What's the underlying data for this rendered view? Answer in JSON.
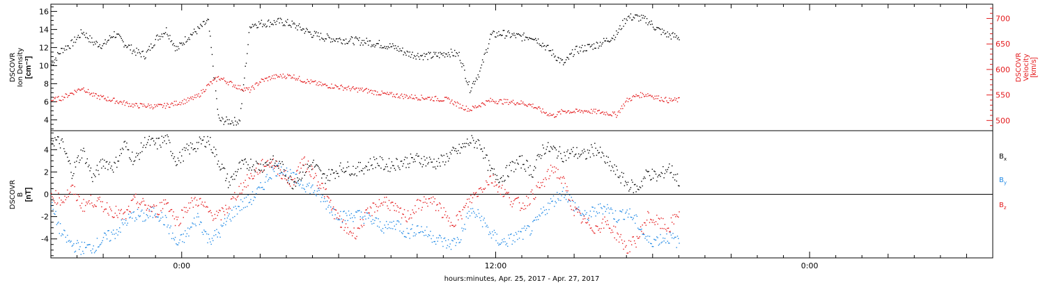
{
  "chart_data": [
    {
      "type": "scatter",
      "panel": "plasma",
      "ylabel_lines": [
        "DSCOVR",
        "Ion Density"
      ],
      "ylabel_unit": "[cm⁻³]",
      "ylabel_right_lines": [
        "DSCOVR",
        "Velocity"
      ],
      "ylabel_right_unit": "[km/s]",
      "ylim": [
        2.8,
        16.8
      ],
      "yticks": [
        4,
        6,
        8,
        10,
        12,
        14,
        16
      ],
      "ylim_right": [
        480,
        728
      ],
      "yticks_right": [
        500,
        550,
        600,
        650,
        700
      ],
      "xlim_hours": [
        -5.0,
        31.0
      ],
      "grid": false,
      "colors": {
        "density": "#000000",
        "velocity": "#e41a1c"
      },
      "series": [
        {
          "axis": "left",
          "x": [
            -5,
            -4.6,
            -4.2,
            -3.8,
            -3.4,
            -3,
            -2.6,
            -2.2,
            -1.8,
            -1.4,
            -1,
            -0.6,
            -0.2,
            0.2,
            0.6,
            1,
            1.4,
            1.8,
            2.2,
            2.6,
            3,
            3.4,
            3.8,
            4.2,
            4.6,
            5,
            5.4,
            5.8,
            6.2,
            6.6,
            7,
            7.4,
            7.8,
            8.2,
            8.6,
            9,
            9.4,
            9.8,
            10.2,
            10.6,
            11,
            11.4,
            11.8,
            12.2,
            12.6,
            13,
            13.4,
            13.8,
            14.2,
            14.6,
            15,
            15.4,
            15.8,
            16.2,
            16.6,
            17,
            17.4,
            17.8,
            18.2,
            18.6,
            19
          ],
          "values": [
            10.2,
            11.8,
            12.5,
            13.8,
            12.6,
            12.3,
            13.6,
            12.5,
            11.6,
            11.2,
            13.0,
            14.0,
            11.8,
            13.2,
            14.0,
            15.0,
            4.0,
            3.9,
            3.9,
            14.6,
            14.7,
            14.8,
            14.9,
            14.6,
            14.1,
            13.5,
            13.2,
            13.0,
            12.9,
            12.8,
            12.7,
            12.5,
            12.3,
            12.0,
            11.4,
            11.2,
            11.1,
            11.2,
            11.5,
            11.2,
            7.5,
            9.5,
            13.4,
            13.6,
            13.4,
            13.2,
            13.3,
            12.4,
            11.3,
            10.2,
            11.7,
            12.0,
            12.3,
            12.8,
            13.5,
            15.4,
            15.4,
            15.0,
            14.0,
            13.4,
            13.2
          ]
        },
        {
          "axis": "right",
          "x": [
            -5,
            -4.6,
            -4.2,
            -3.8,
            -3.4,
            -3,
            -2.6,
            -2.2,
            -1.8,
            -1.4,
            -1,
            -0.6,
            -0.2,
            0.2,
            0.6,
            1,
            1.4,
            1.8,
            2.2,
            2.6,
            3,
            3.4,
            3.8,
            4.2,
            4.6,
            5,
            5.4,
            5.8,
            6.2,
            6.6,
            7,
            7.4,
            7.8,
            8.2,
            8.6,
            9,
            9.4,
            9.8,
            10.2,
            10.6,
            11,
            11.4,
            11.8,
            12.2,
            12.6,
            13,
            13.4,
            13.8,
            14.2,
            14.6,
            15,
            15.4,
            15.8,
            16.2,
            16.6,
            17,
            17.4,
            17.8,
            18.2,
            18.6,
            19
          ],
          "values": [
            540,
            545,
            555,
            565,
            550,
            545,
            540,
            535,
            530,
            530,
            528,
            530,
            535,
            540,
            548,
            570,
            585,
            575,
            565,
            560,
            578,
            585,
            588,
            588,
            580,
            575,
            570,
            568,
            565,
            562,
            560,
            556,
            552,
            550,
            548,
            546,
            545,
            543,
            541,
            530,
            522,
            532,
            540,
            538,
            537,
            535,
            530,
            518,
            510,
            520,
            518,
            520,
            518,
            516,
            512,
            540,
            550,
            552,
            545,
            540,
            541
          ]
        }
      ]
    },
    {
      "type": "scatter",
      "panel": "magnetic-field",
      "ylabel_lines": [
        "DSCOVR",
        "B"
      ],
      "ylabel_unit": "[nT]",
      "ylim": [
        -5.7,
        5.7
      ],
      "yticks": [
        -4,
        -2,
        0,
        2,
        4
      ],
      "xlim_hours": [
        -5.0,
        31.0
      ],
      "zero_line": true,
      "grid": false,
      "xticks": [
        {
          "hours": 0,
          "label": "0:00"
        },
        {
          "hours": 12,
          "label": "12:00"
        },
        {
          "hours": 24,
          "label": "0:00"
        }
      ],
      "xlabel": "hours:minutes, Apr. 25, 2017 - Apr. 27, 2017",
      "series": [
        {
          "name": "B",
          "sub": "x",
          "color": "#000000",
          "x": [
            -5,
            -4.6,
            -4.2,
            -3.8,
            -3.4,
            -3,
            -2.6,
            -2.2,
            -1.8,
            -1.4,
            -1,
            -0.6,
            -0.2,
            0.2,
            0.6,
            1,
            1.4,
            1.8,
            2.2,
            2.6,
            3,
            3.4,
            3.8,
            4.2,
            4.6,
            5,
            5.4,
            5.8,
            6.2,
            6.6,
            7,
            7.4,
            7.8,
            8.2,
            8.6,
            9,
            9.4,
            9.8,
            10.2,
            10.6,
            11,
            11.4,
            11.8,
            12.2,
            12.6,
            13,
            13.4,
            13.8,
            14.2,
            14.6,
            15,
            15.4,
            15.8,
            16.2,
            16.6,
            17,
            17.4,
            17.8,
            18.2,
            18.6,
            19
          ],
          "values": [
            5.0,
            4.6,
            2.0,
            4.0,
            1.5,
            3.0,
            2.5,
            4.5,
            3.0,
            4.8,
            4.5,
            5.0,
            3.0,
            4.0,
            4.5,
            5.0,
            3.0,
            1.0,
            2.5,
            2.8,
            2.5,
            3.0,
            2.5,
            1.0,
            2.0,
            2.8,
            1.5,
            2.0,
            2.5,
            2.2,
            2.5,
            3.0,
            2.6,
            2.8,
            3.0,
            3.2,
            3.0,
            2.8,
            3.5,
            4.0,
            4.8,
            4.6,
            2.0,
            1.5,
            2.5,
            3.0,
            2.0,
            4.2,
            4.0,
            3.5,
            3.8,
            3.5,
            4.2,
            3.0,
            2.0,
            1.0,
            0.5,
            2.0,
            1.5,
            2.5,
            1.2
          ]
        },
        {
          "name": "B",
          "sub": "y",
          "color": "#1e88e5",
          "x": [
            -5,
            -4.6,
            -4.2,
            -3.8,
            -3.4,
            -3,
            -2.6,
            -2.2,
            -1.8,
            -1.4,
            -1,
            -0.6,
            -0.2,
            0.2,
            0.6,
            1,
            1.4,
            1.8,
            2.2,
            2.6,
            3,
            3.4,
            3.8,
            4.2,
            4.6,
            5,
            5.4,
            5.8,
            6.2,
            6.6,
            7,
            7.4,
            7.8,
            8.2,
            8.6,
            9,
            9.4,
            9.8,
            10.2,
            10.6,
            11,
            11.4,
            11.8,
            12.2,
            12.6,
            13,
            13.4,
            13.8,
            14.2,
            14.6,
            15,
            15.4,
            15.8,
            16.2,
            16.6,
            17,
            17.4,
            17.8,
            18.2,
            18.6,
            19
          ],
          "values": [
            -1.0,
            -3.5,
            -4.5,
            -4.8,
            -4.7,
            -4.0,
            -3.5,
            -2.5,
            -1.8,
            -2.0,
            -1.5,
            -2.5,
            -4.5,
            -3.5,
            -2.0,
            -4.0,
            -3.5,
            -2.0,
            -1.0,
            -0.5,
            0.5,
            2.0,
            2.5,
            1.5,
            1.0,
            0.5,
            -0.5,
            -1.5,
            -2.0,
            -1.8,
            -2.0,
            -2.5,
            -3.0,
            -2.5,
            -3.5,
            -3.0,
            -3.5,
            -4.0,
            -4.5,
            -4.0,
            -1.5,
            -2.0,
            -3.5,
            -4.3,
            -4.0,
            -3.5,
            -3.0,
            -1.5,
            -0.5,
            0.3,
            -1.0,
            -2.0,
            -1.5,
            -1.0,
            -2.0,
            -1.5,
            -2.5,
            -4.2,
            -4.0,
            -3.8,
            -4.3
          ]
        },
        {
          "name": "B",
          "sub": "z",
          "color": "#e41a1c",
          "x": [
            -5,
            -4.6,
            -4.2,
            -3.8,
            -3.4,
            -3,
            -2.6,
            -2.2,
            -1.8,
            -1.4,
            -1,
            -0.6,
            -0.2,
            0.2,
            0.6,
            1,
            1.4,
            1.8,
            2.2,
            2.6,
            3,
            3.4,
            3.8,
            4.2,
            4.6,
            5,
            5.4,
            5.8,
            6.2,
            6.6,
            7,
            7.4,
            7.8,
            8.2,
            8.6,
            9,
            9.4,
            9.8,
            10.2,
            10.6,
            11,
            11.4,
            11.8,
            12.2,
            12.6,
            13,
            13.4,
            13.8,
            14.2,
            14.6,
            15,
            15.4,
            15.8,
            16.2,
            16.6,
            17,
            17.4,
            17.8,
            18.2,
            18.6,
            19
          ],
          "values": [
            0.0,
            -0.5,
            0.5,
            -1.0,
            -0.5,
            -1.0,
            -1.5,
            -2.0,
            -0.5,
            -1.0,
            -1.5,
            -0.5,
            -2.5,
            -1.0,
            -0.5,
            -1.5,
            -2.0,
            -1.0,
            0.5,
            1.5,
            2.5,
            3.0,
            2.0,
            1.0,
            3.0,
            2.0,
            0.5,
            -1.5,
            -3.0,
            -3.5,
            -2.0,
            -1.0,
            -0.5,
            -1.5,
            -2.0,
            -1.0,
            -0.5,
            -1.0,
            -2.5,
            -2.0,
            -0.5,
            0.5,
            1.5,
            0.5,
            -0.5,
            -1.0,
            0.0,
            1.0,
            2.5,
            1.0,
            -1.5,
            -2.5,
            -3.0,
            -2.5,
            -3.5,
            -4.8,
            -4.0,
            -2.0,
            -2.5,
            -3.0,
            -1.5
          ]
        }
      ]
    }
  ]
}
